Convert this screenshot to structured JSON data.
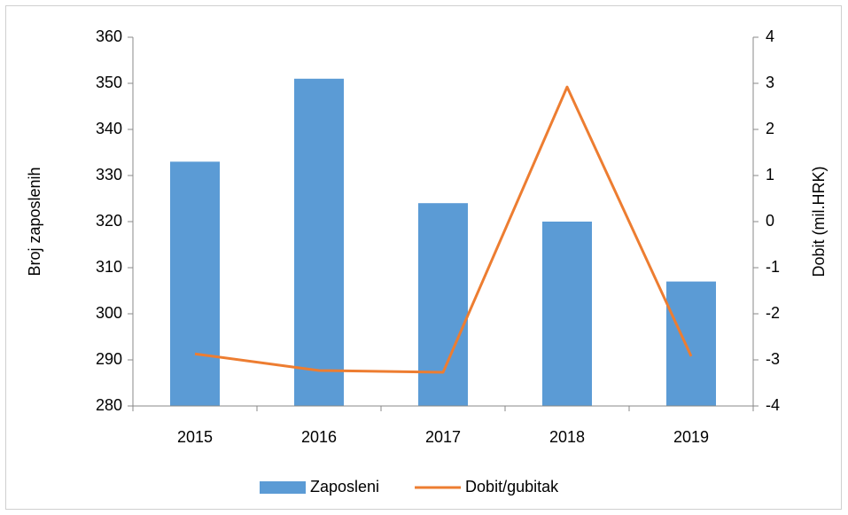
{
  "chart_data": {
    "type": "bar",
    "categories": [
      "2015",
      "2016",
      "2017",
      "2018",
      "2019"
    ],
    "series": [
      {
        "name": "Zaposleni",
        "type": "bar",
        "color": "#5b9bd5",
        "values": [
          333,
          351,
          324,
          320,
          307
        ]
      },
      {
        "name": "Dobit/gubitak",
        "type": "line",
        "axis": "y2",
        "color": "#ed7d31",
        "values": [
          -2.87,
          -3.23,
          -3.27,
          2.92,
          -2.92
        ]
      }
    ],
    "ylabel": "Broj zaposlenih",
    "y2label": "Dobit (mil.HRK)",
    "ylim": [
      280,
      360
    ],
    "yticks": [
      280,
      290,
      300,
      310,
      320,
      330,
      340,
      350,
      360
    ],
    "y2lim": [
      -4,
      4
    ],
    "y2ticks": [
      -4,
      -3,
      -2,
      -1,
      0,
      1,
      2,
      3,
      4
    ],
    "grid": false,
    "legend": "bottom"
  }
}
